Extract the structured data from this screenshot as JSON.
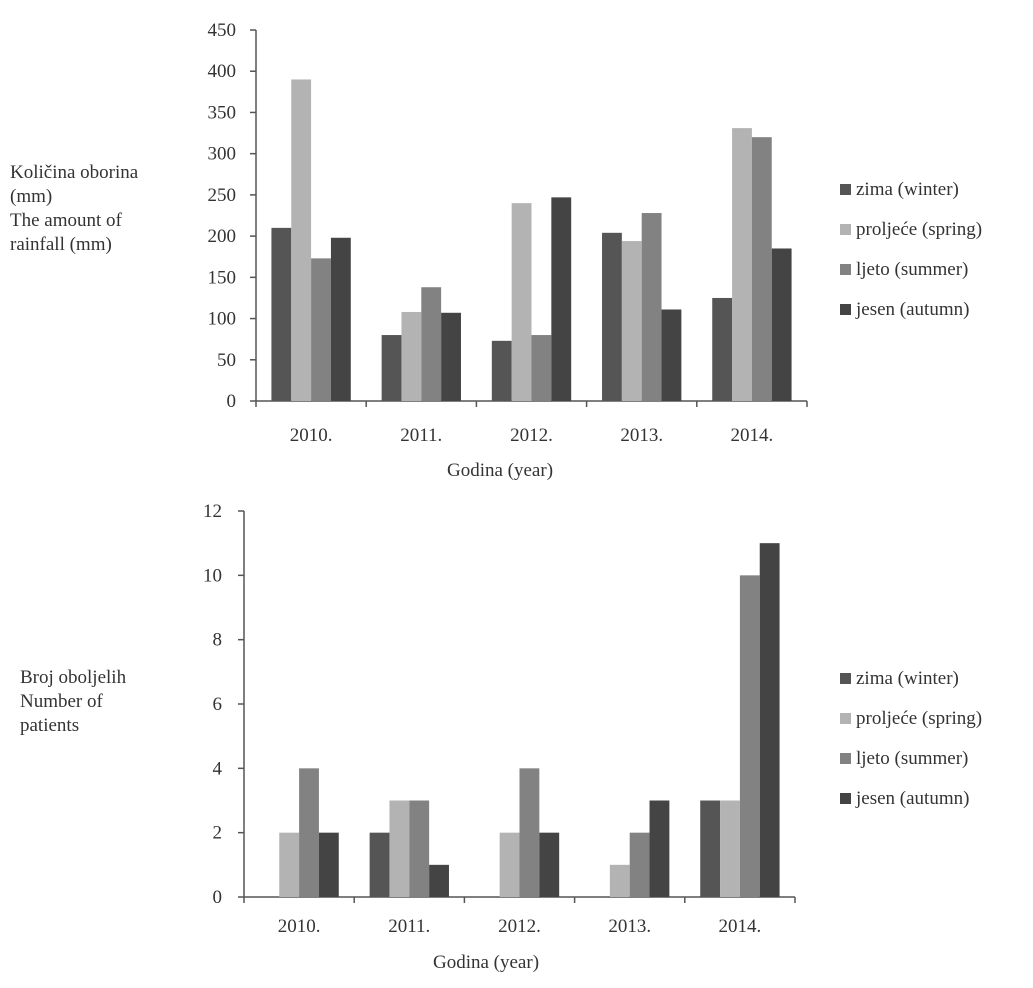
{
  "chart_data": [
    {
      "type": "bar",
      "categories": [
        "2010.",
        "2011.",
        "2012.",
        "2013.",
        "2014."
      ],
      "series": [
        {
          "name": "zima (winter)",
          "values": [
            210,
            80,
            73,
            204,
            125
          ],
          "color": "#555555"
        },
        {
          "name": "proljeće (spring)",
          "values": [
            390,
            108,
            240,
            194,
            331
          ],
          "color": "#b3b3b3"
        },
        {
          "name": "ljeto (summer)",
          "values": [
            173,
            138,
            80,
            228,
            320
          ],
          "color": "#828282"
        },
        {
          "name": "jesen (autumn)",
          "values": [
            198,
            107,
            247,
            111,
            185
          ],
          "color": "#444444"
        }
      ],
      "ylim": [
        0,
        450
      ],
      "yticks": [
        "0",
        "50",
        "100",
        "150",
        "200",
        "250",
        "300",
        "350",
        "400",
        "450"
      ],
      "xlabel": "Godina (year)",
      "ylabel_lines": [
        "Količina oborina",
        "(mm)",
        "The amount of",
        "rainfall (mm)"
      ],
      "grid": false,
      "legend_position": "right"
    },
    {
      "type": "bar",
      "categories": [
        "2010.",
        "2011.",
        "2012.",
        "2013.",
        "2014."
      ],
      "series": [
        {
          "name": "zima (winter)",
          "values": [
            0,
            2,
            0,
            0,
            3
          ],
          "color": "#555555"
        },
        {
          "name": "proljeće (spring)",
          "values": [
            2,
            3,
            2,
            1,
            3
          ],
          "color": "#b3b3b3"
        },
        {
          "name": "ljeto (summer)",
          "values": [
            4,
            3,
            4,
            2,
            10
          ],
          "color": "#828282"
        },
        {
          "name": "jesen (autumn)",
          "values": [
            2,
            1,
            2,
            3,
            11
          ],
          "color": "#444444"
        }
      ],
      "ylim": [
        0,
        12
      ],
      "yticks": [
        "0",
        "2",
        "4",
        "6",
        "8",
        "10",
        "12"
      ],
      "xlabel": "Godina (year)",
      "ylabel_lines": [
        "Broj oboljelih",
        "Number of",
        "patients"
      ],
      "grid": false,
      "legend_position": "right"
    }
  ]
}
